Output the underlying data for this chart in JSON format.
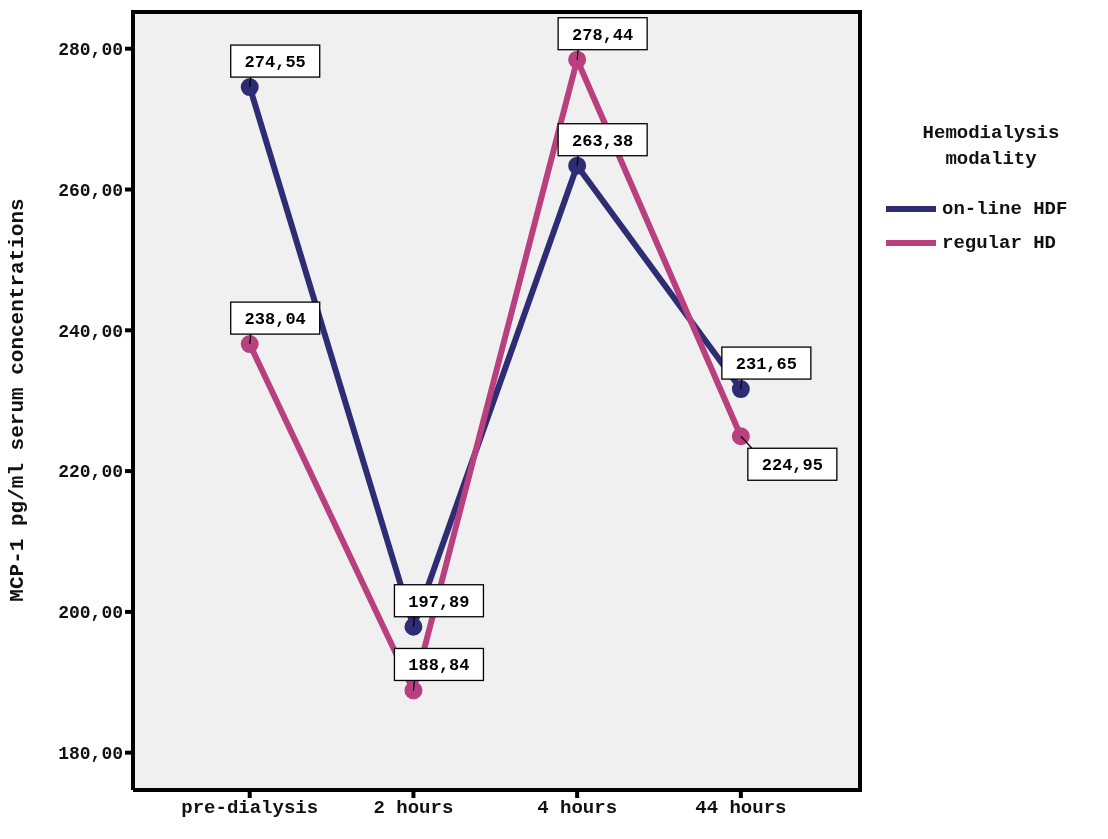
{
  "chart_data": {
    "type": "line",
    "ylabel": "MCP-1 pg/ml serum concentrations",
    "legend_title": "Hemodialysis modality",
    "categories": [
      "pre-dialysis",
      "2 hours",
      "4 hours",
      "44 hours"
    ],
    "series": [
      {
        "name": "on-line HDF",
        "color": "#2e2c72",
        "values": [
          274.55,
          197.89,
          263.38,
          231.65
        ],
        "value_labels": [
          "274,55",
          "197,89",
          "263,38",
          "231,65"
        ]
      },
      {
        "name": "regular HD",
        "color": "#b8407f",
        "values": [
          238.04,
          188.84,
          278.44,
          224.95
        ],
        "value_labels": [
          "238,04",
          "188,84",
          "278,44",
          "224,95"
        ]
      }
    ],
    "ylim": [
      174.7,
      285.5
    ],
    "yticks": [
      {
        "value": 180,
        "label": "180,00"
      },
      {
        "value": 200,
        "label": "200,00"
      },
      {
        "value": 220,
        "label": "220,00"
      },
      {
        "value": 240,
        "label": "240,00"
      },
      {
        "value": 260,
        "label": "260,00"
      },
      {
        "value": 280,
        "label": "280,00"
      }
    ],
    "grid": false,
    "legend": "right",
    "marker": "circle",
    "line_style": "solid"
  }
}
